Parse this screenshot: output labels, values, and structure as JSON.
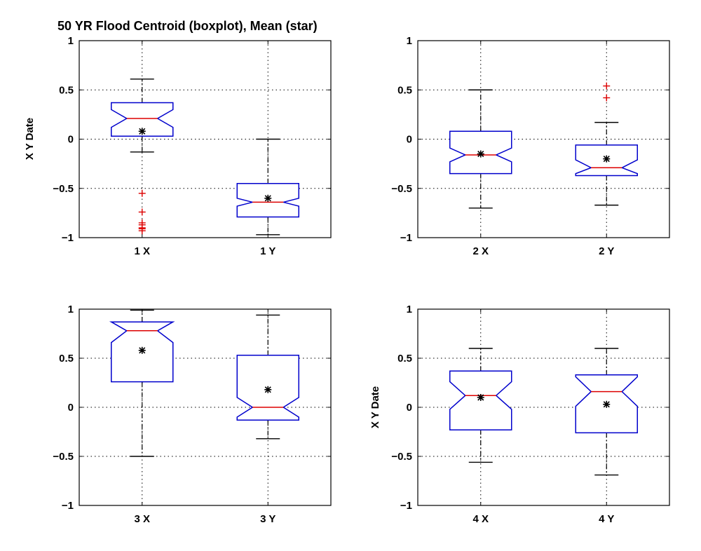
{
  "figure_title": "50 YR Flood Centroid (boxplot), Mean (star)",
  "colors": {
    "box": "#0000cc",
    "median": "#dd0000",
    "outlier": "#dd0000",
    "whisker": "#000000",
    "mean": "#000000",
    "grid": "#000000"
  },
  "chart_data": [
    {
      "type": "boxplot",
      "title": "50 YR Flood Centroid (boxplot), Mean (star)",
      "ylabel": "X Y Date",
      "ylim": [
        -1,
        1
      ],
      "yticks": [
        "1",
        "0.5",
        "0",
        "−0.5",
        "−1"
      ],
      "grid": true,
      "notched": true,
      "categories": [
        "1 X",
        "1 Y"
      ],
      "boxes": [
        {
          "category": "1 X",
          "whisker_low": -0.13,
          "q1": 0.03,
          "median": 0.21,
          "q3": 0.37,
          "whisker_high": 0.61,
          "notch_low": 0.12,
          "notch_high": 0.3,
          "mean": 0.08,
          "outliers": [
            -0.55,
            -0.74,
            -0.85,
            -0.87,
            -0.9,
            -0.91,
            -0.93
          ]
        },
        {
          "category": "1 Y",
          "whisker_low": -0.97,
          "q1": -0.79,
          "median": -0.64,
          "q3": -0.45,
          "whisker_high": 0.0,
          "notch_low": -0.68,
          "notch_high": -0.6,
          "mean": -0.6,
          "outliers": []
        }
      ]
    },
    {
      "type": "boxplot",
      "ylabel": "",
      "ylim": [
        -1,
        1
      ],
      "yticks": [
        "1",
        "0.5",
        "0",
        "−0.5",
        "−1"
      ],
      "grid": true,
      "notched": true,
      "categories": [
        "2 X",
        "2 Y"
      ],
      "boxes": [
        {
          "category": "2 X",
          "whisker_low": -0.7,
          "q1": -0.35,
          "median": -0.16,
          "q3": 0.08,
          "whisker_high": 0.5,
          "notch_low": -0.23,
          "notch_high": -0.09,
          "mean": -0.15,
          "outliers": []
        },
        {
          "category": "2 Y",
          "whisker_low": -0.67,
          "q1": -0.37,
          "median": -0.29,
          "q3": -0.06,
          "whisker_high": 0.17,
          "notch_low": -0.35,
          "notch_high": -0.21,
          "mean": -0.2,
          "outliers": [
            0.42,
            0.54
          ]
        }
      ]
    },
    {
      "type": "boxplot",
      "ylabel": "",
      "ylim": [
        -1,
        1
      ],
      "yticks": [
        "1",
        "0.5",
        "0",
        "−0.5",
        "−1"
      ],
      "grid": true,
      "notched": true,
      "categories": [
        "3 X",
        "3 Y"
      ],
      "boxes": [
        {
          "category": "3 X",
          "whisker_low": -0.5,
          "q1": 0.26,
          "median": 0.78,
          "q3": 0.87,
          "whisker_high": 0.99,
          "notch_low": 0.66,
          "notch_high": 0.9,
          "mean": 0.58,
          "outliers": []
        },
        {
          "category": "3 Y",
          "whisker_low": -0.32,
          "q1": -0.13,
          "median": 0.0,
          "q3": 0.53,
          "whisker_high": 0.94,
          "notch_low": -0.1,
          "notch_high": 0.1,
          "mean": 0.18,
          "outliers": []
        }
      ]
    },
    {
      "type": "boxplot",
      "ylabel": "X Y Date",
      "ylim": [
        -1,
        1
      ],
      "yticks": [
        "1",
        "0.5",
        "0",
        "−0.5",
        "−1"
      ],
      "grid": true,
      "notched": true,
      "categories": [
        "4 X",
        "4 Y"
      ],
      "boxes": [
        {
          "category": "4 X",
          "whisker_low": -0.56,
          "q1": -0.23,
          "median": 0.12,
          "q3": 0.37,
          "whisker_high": 0.6,
          "notch_low": -0.02,
          "notch_high": 0.26,
          "mean": 0.1,
          "outliers": []
        },
        {
          "category": "4 Y",
          "whisker_low": -0.69,
          "q1": -0.26,
          "median": 0.16,
          "q3": 0.33,
          "whisker_high": 0.6,
          "notch_low": 0.01,
          "notch_high": 0.31,
          "mean": 0.03,
          "outliers": []
        }
      ]
    }
  ]
}
